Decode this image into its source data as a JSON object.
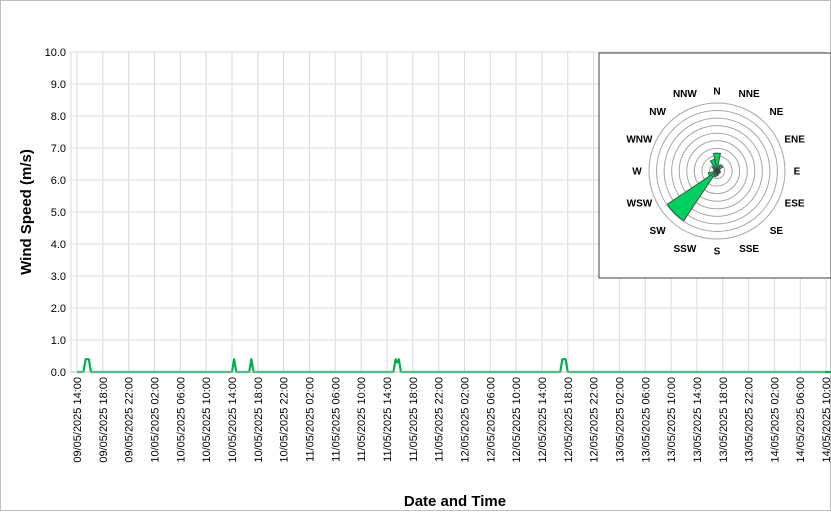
{
  "chart_data": [
    {
      "type": "line",
      "title": "",
      "xlabel": "Date and Time",
      "ylabel": "Wind Speed (m/s)",
      "ylim": [
        0,
        10
      ],
      "y_ticks": [
        "0.0",
        "1.0",
        "2.0",
        "3.0",
        "4.0",
        "5.0",
        "6.0",
        "7.0",
        "8.0",
        "9.0",
        "10.0"
      ],
      "x_ticks": [
        "09/05/2025 14:00",
        "09/05/2025 18:00",
        "09/05/2025 22:00",
        "10/05/2025 02:00",
        "10/05/2025 06:00",
        "10/05/2025 10:00",
        "10/05/2025 14:00",
        "10/05/2025 18:00",
        "10/05/2025 22:00",
        "11/05/2025 02:00",
        "11/05/2025 06:00",
        "11/05/2025 10:00",
        "11/05/2025 14:00",
        "11/05/2025 18:00",
        "11/05/2025 22:00",
        "12/05/2025 02:00",
        "12/05/2025 06:00",
        "12/05/2025 10:00",
        "12/05/2025 14:00",
        "12/05/2025 18:00",
        "12/05/2025 22:00",
        "13/05/2025 02:00",
        "13/05/2025 06:00",
        "13/05/2025 10:00",
        "13/05/2025 14:00",
        "13/05/2025 18:00",
        "13/05/2025 22:00",
        "14/05/2025 02:00",
        "14/05/2025 06:00",
        "14/05/2025 10:00"
      ],
      "grid": true,
      "series_color": "#00b050",
      "points": [
        {
          "x": "09/05/2025 14:00",
          "y": 0
        },
        {
          "x": "09/05/2025 15:00",
          "y": 0
        },
        {
          "x": "09/05/2025 15:20",
          "y": 0.4
        },
        {
          "x": "09/05/2025 15:50",
          "y": 0.4
        },
        {
          "x": "09/05/2025 16:10",
          "y": 0
        },
        {
          "x": "10/05/2025 14:00",
          "y": 0
        },
        {
          "x": "10/05/2025 14:20",
          "y": 0.4
        },
        {
          "x": "10/05/2025 14:40",
          "y": 0
        },
        {
          "x": "10/05/2025 16:40",
          "y": 0
        },
        {
          "x": "10/05/2025 17:00",
          "y": 0.4
        },
        {
          "x": "10/05/2025 17:20",
          "y": 0
        },
        {
          "x": "11/05/2025 15:00",
          "y": 0
        },
        {
          "x": "11/05/2025 15:20",
          "y": 0.4
        },
        {
          "x": "11/05/2025 15:35",
          "y": 0.3
        },
        {
          "x": "11/05/2025 15:50",
          "y": 0.4
        },
        {
          "x": "11/05/2025 16:10",
          "y": 0
        },
        {
          "x": "12/05/2025 16:50",
          "y": 0
        },
        {
          "x": "12/05/2025 17:10",
          "y": 0.4
        },
        {
          "x": "12/05/2025 17:40",
          "y": 0.4
        },
        {
          "x": "12/05/2025 18:00",
          "y": 0
        },
        {
          "x": "14/05/2025 12:00",
          "y": 0
        }
      ]
    },
    {
      "type": "wind-rose",
      "directions": [
        "N",
        "NNE",
        "NE",
        "ENE",
        "E",
        "ESE",
        "SE",
        "SSE",
        "S",
        "SSW",
        "SW",
        "WSW",
        "W",
        "WNW",
        "NW",
        "NNW"
      ],
      "ring_count": 9,
      "series_color": "#00d060",
      "frequencies": [
        0.3,
        0.1,
        0.12,
        0.05,
        0.05,
        0.06,
        0.05,
        0.06,
        0.08,
        0.1,
        1.0,
        0.15,
        0.05,
        0.06,
        0.1,
        0.2
      ]
    }
  ]
}
